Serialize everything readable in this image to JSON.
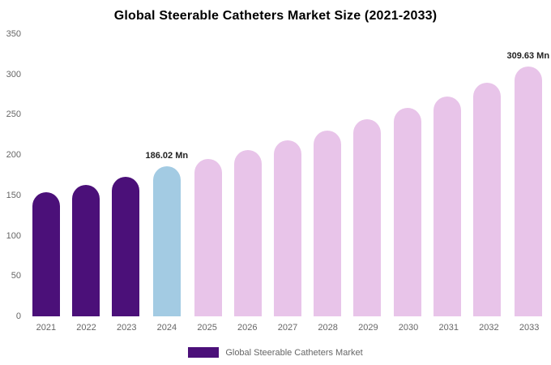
{
  "title": "Global Steerable Catheters Market Size (2021-2033)",
  "legend": {
    "label": "Global Steerable Catheters Market",
    "swatch_color": "#4B1079"
  },
  "colors": {
    "historical_bar": "#4B1079",
    "highlight_bar": "#A3CBE3",
    "forecast_bar": "#E8C4E9",
    "axis_text": "#666666",
    "annotation_text": "#222222"
  },
  "chart_data": {
    "type": "bar",
    "title": "Global Steerable Catheters Market Size (2021-2033)",
    "categories": [
      "2021",
      "2022",
      "2023",
      "2024",
      "2025",
      "2026",
      "2027",
      "2028",
      "2029",
      "2030",
      "2031",
      "2032",
      "2033"
    ],
    "values": [
      154,
      163,
      173,
      186.02,
      195,
      206,
      218,
      230,
      244,
      258,
      273,
      290,
      309.63
    ],
    "bar_colors": [
      "#4B1079",
      "#4B1079",
      "#4B1079",
      "#A3CBE3",
      "#E8C4E9",
      "#E8C4E9",
      "#E8C4E9",
      "#E8C4E9",
      "#E8C4E9",
      "#E8C4E9",
      "#E8C4E9",
      "#E8C4E9",
      "#E8C4E9"
    ],
    "annotations": [
      {
        "index": 3,
        "text": "186.02 Mn"
      },
      {
        "index": 12,
        "text": "309.63 Mn"
      }
    ],
    "xlabel": "",
    "ylabel": "",
    "ylim": [
      0,
      350
    ],
    "yticks": [
      0,
      50,
      100,
      150,
      200,
      250,
      300,
      350
    ],
    "grid": false,
    "legend_entries": [
      "Global Steerable Catheters Market"
    ],
    "legend_position": "bottom"
  }
}
